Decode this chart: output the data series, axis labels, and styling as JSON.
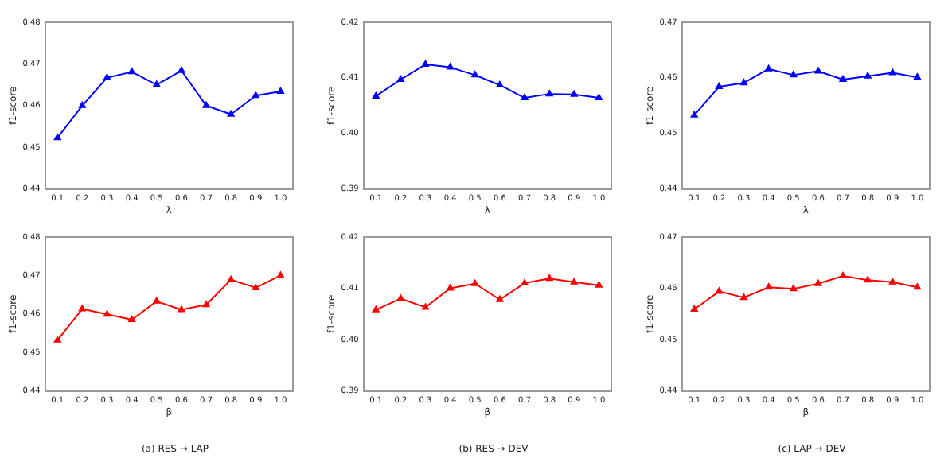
{
  "chart_data": [
    {
      "type": "line",
      "xlabel": "λ",
      "ylabel": "f1-score",
      "categories": [
        "0.1",
        "0.2",
        "0.3",
        "0.4",
        "0.5",
        "0.6",
        "0.7",
        "0.8",
        "0.9",
        "1.0"
      ],
      "color": "#0000ff",
      "marker": "triangle",
      "values": [
        0.4523,
        0.46,
        0.4667,
        0.4681,
        0.465,
        0.4684,
        0.46,
        0.4579,
        0.4624,
        0.4634
      ],
      "ylim": [
        0.44,
        0.48
      ],
      "yticks": [
        0.44,
        0.45,
        0.46,
        0.47,
        0.48
      ]
    },
    {
      "type": "line",
      "xlabel": "λ",
      "ylabel": "f1-score",
      "categories": [
        "0.1",
        "0.2",
        "0.3",
        "0.4",
        "0.5",
        "0.6",
        "0.7",
        "0.8",
        "0.9",
        "1.0"
      ],
      "color": "#0000ff",
      "marker": "triangle",
      "values": [
        0.4067,
        0.4097,
        0.4124,
        0.4119,
        0.4105,
        0.4087,
        0.4064,
        0.4071,
        0.407,
        0.4064
      ],
      "ylim": [
        0.39,
        0.42
      ],
      "yticks": [
        0.39,
        {
          "value": 0.4,
          "label": "0.40"
        },
        0.41,
        0.42
      ]
    },
    {
      "type": "line",
      "xlabel": "λ",
      "ylabel": "f1-score",
      "categories": [
        "0.1",
        "0.2",
        "0.3",
        "0.4",
        "0.5",
        "0.6",
        "0.7",
        "0.8",
        "0.9",
        "1.0"
      ],
      "color": "#0000ff",
      "marker": "triangle",
      "values": [
        0.4533,
        0.4584,
        0.4591,
        0.4616,
        0.4605,
        0.4612,
        0.4597,
        0.4603,
        0.4609,
        0.4601
      ],
      "ylim": [
        0.44,
        0.47
      ],
      "yticks": [
        0.44,
        0.45,
        0.46,
        0.47
      ]
    },
    {
      "type": "line",
      "xlabel": "β",
      "ylabel": "f1-score",
      "categories": [
        "0.1",
        "0.2",
        "0.3",
        "0.4",
        "0.5",
        "0.6",
        "0.7",
        "0.8",
        "0.9",
        "1.0"
      ],
      "color": "#ff0000",
      "marker": "triangle",
      "values": [
        0.4532,
        0.4613,
        0.4599,
        0.4585,
        0.4633,
        0.4611,
        0.4624,
        0.4689,
        0.4668,
        0.47
      ],
      "ylim": [
        0.44,
        0.48
      ],
      "yticks": [
        0.44,
        0.45,
        0.46,
        0.47,
        0.48
      ],
      "annotations": [
        "(a) RES → LAP"
      ]
    },
    {
      "type": "line",
      "xlabel": "β",
      "ylabel": "f1-score",
      "categories": [
        "0.1",
        "0.2",
        "0.3",
        "0.4",
        "0.5",
        "0.6",
        "0.7",
        "0.8",
        "0.9",
        "1.0"
      ],
      "color": "#ff0000",
      "marker": "triangle",
      "values": [
        0.4058,
        0.408,
        0.4063,
        0.41,
        0.4109,
        0.4078,
        0.411,
        0.4119,
        0.4112,
        0.4106
      ],
      "ylim": [
        0.39,
        0.42
      ],
      "yticks": [
        0.39,
        {
          "value": 0.4,
          "label": "0.40"
        },
        0.41,
        0.42
      ],
      "annotations": [
        "(b) RES → DEV"
      ]
    },
    {
      "type": "line",
      "xlabel": "β",
      "ylabel": "f1-score",
      "categories": [
        "0.1",
        "0.2",
        "0.3",
        "0.4",
        "0.5",
        "0.6",
        "0.7",
        "0.8",
        "0.9",
        "1.0"
      ],
      "color": "#ff0000",
      "marker": "triangle",
      "values": [
        0.4559,
        0.4594,
        0.4582,
        0.4602,
        0.4599,
        0.4609,
        0.4624,
        0.4616,
        0.4612,
        0.4602
      ],
      "ylim": [
        0.44,
        0.47
      ],
      "yticks": [
        0.44,
        0.45,
        0.46,
        0.47
      ],
      "annotations": [
        "(c) LAP → DEV"
      ]
    }
  ]
}
